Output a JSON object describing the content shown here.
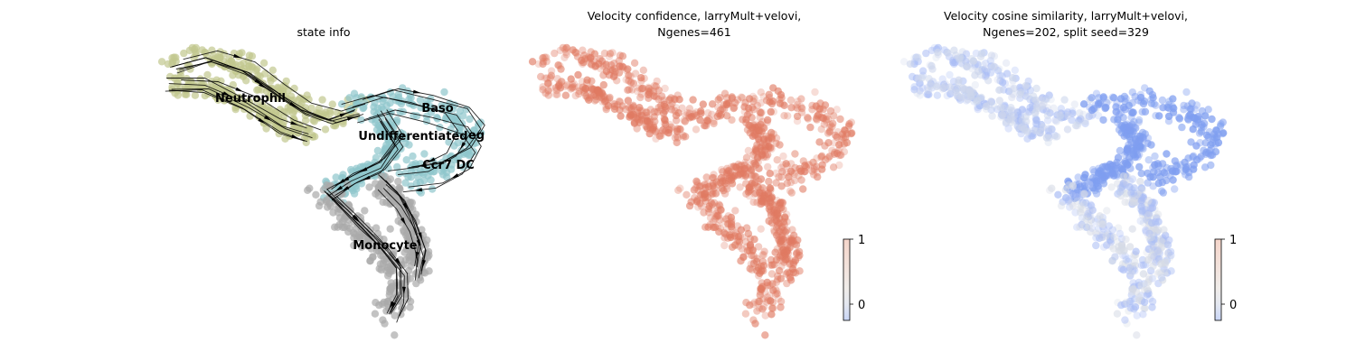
{
  "chart_data": [
    {
      "type": "scatter",
      "title": "state info",
      "embedding": "streamlines",
      "clusters": [
        {
          "name": "Neutrophil",
          "color": "#c2c78f"
        },
        {
          "name": "Baso",
          "color": "#8fc6cc"
        },
        {
          "name": "Undifferentiated",
          "color": "#8fc6cc"
        },
        {
          "name": "Meg",
          "color": "#8fc6cc"
        },
        {
          "name": "Ccr7 DC",
          "color": "#8fc6cc"
        },
        {
          "name": "Monocyte",
          "color": "#a9a9a9"
        }
      ],
      "label_texts": [
        "Neutrophil",
        "Baso",
        "Undifferentiated",
        "eg",
        "Ccr7 DC",
        "Monocyte"
      ]
    },
    {
      "type": "scatter",
      "title_lines": [
        "Velocity confidence, larryMult+velovi,",
        "Ngenes=461"
      ],
      "colormap": "coolwarm",
      "colorbar": {
        "vmin": -0.25,
        "vmax": 1,
        "ticks": [
          "1",
          "0"
        ],
        "tick_values": [
          1,
          0
        ]
      },
      "mean_value": 0.9
    },
    {
      "type": "scatter",
      "title_lines": [
        "Velocity cosine similarity, larryMult+velovi,",
        "Ngenes=202, split seed=329"
      ],
      "colormap": "coolwarm",
      "colorbar": {
        "vmin": -0.25,
        "vmax": 1,
        "ticks": [
          "1",
          "0"
        ],
        "tick_values": [
          1,
          0
        ]
      },
      "mean_value": 0.0
    }
  ],
  "colors": {
    "neutrophil": "#c2c78f",
    "progenitor": "#8fc6cc",
    "monocyte": "#a9a9a9",
    "confidence_point": "#e07a62",
    "cosine_point": "#aabdf5"
  }
}
